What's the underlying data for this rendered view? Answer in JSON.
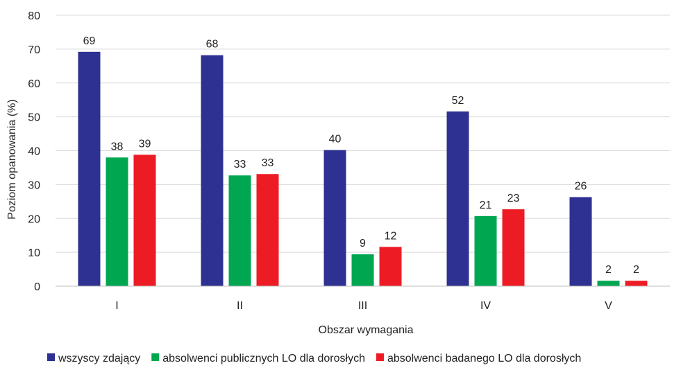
{
  "chart_data": {
    "type": "bar",
    "categories": [
      "I",
      "II",
      "III",
      "IV",
      "V"
    ],
    "series": [
      {
        "name": "wszyscy zdający",
        "color": "#2E3192",
        "values": [
          69,
          68,
          40,
          52,
          26
        ]
      },
      {
        "name": "absolwenci publicznych LO dla dorosłych",
        "color": "#00A650",
        "values": [
          38,
          33,
          9,
          21,
          2
        ]
      },
      {
        "name": "absolwenci badanego LO dla dorosłych",
        "color": "#ED1C24",
        "values": [
          39,
          33,
          12,
          23,
          2
        ]
      }
    ],
    "display_values": [
      [
        "69",
        "68",
        "40",
        "52",
        "26"
      ],
      [
        "38",
        "33",
        "9",
        "21",
        "2"
      ],
      [
        "39",
        "33",
        "12",
        "23",
        "2"
      ]
    ],
    "bar_values": [
      [
        69.2,
        68.2,
        40.2,
        51.6,
        26.3
      ],
      [
        38.0,
        32.7,
        9.4,
        20.7,
        1.6
      ],
      [
        38.8,
        33.1,
        11.6,
        22.7,
        1.6
      ]
    ],
    "xlabel": "Obszar wymagania",
    "ylabel": "Poziom opanowania (%)",
    "ylim": [
      0,
      80
    ],
    "yticks": [
      "0",
      "10",
      "20",
      "30",
      "40",
      "50",
      "60",
      "70",
      "80"
    ],
    "grid": true,
    "legend_position": "bottom"
  }
}
